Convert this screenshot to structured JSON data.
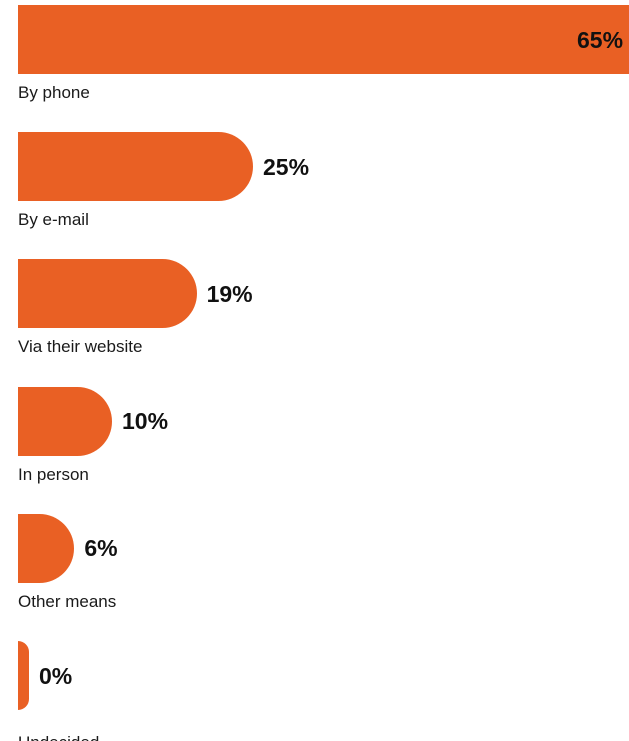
{
  "chart_data": {
    "type": "bar",
    "orientation": "horizontal",
    "categories": [
      "By phone",
      "By e-mail",
      "Via their website",
      "In person",
      "Other means",
      "Undecided"
    ],
    "values": [
      65,
      25,
      19,
      10,
      6,
      0
    ],
    "value_labels": [
      "65%",
      "25%",
      "19%",
      "10%",
      "6%",
      "0%"
    ],
    "unit": "%",
    "xlim": [
      0,
      65
    ],
    "grid": false,
    "legend": "none",
    "colors": {
      "bar": "#E96024",
      "value_text": "#111111",
      "label_text": "#1a1a1a"
    }
  }
}
